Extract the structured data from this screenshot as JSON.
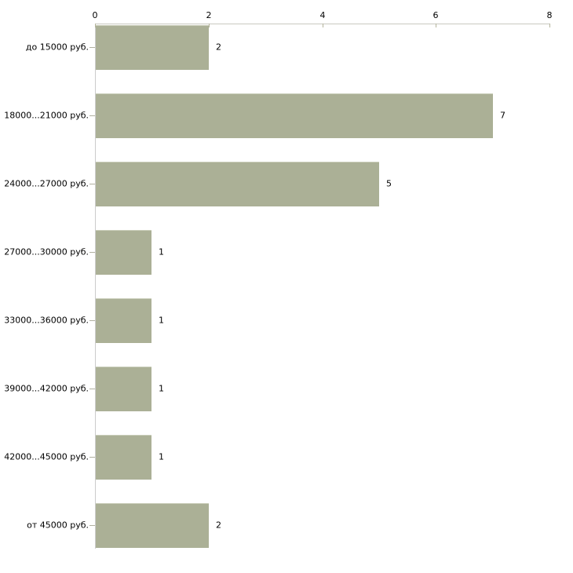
{
  "chart_data": {
    "type": "bar",
    "orientation": "horizontal",
    "title": "",
    "xlabel": "",
    "ylabel": "",
    "categories": [
      "до 15000 руб.",
      "18000...21000 руб.",
      "24000...27000 руб.",
      "27000...30000 руб.",
      "33000...36000 руб.",
      "39000...42000 руб.",
      "42000...45000 руб.",
      "от 45000 руб."
    ],
    "values": [
      2,
      7,
      5,
      1,
      1,
      1,
      1,
      2
    ],
    "value_labels": [
      "2",
      "7",
      "5",
      "1",
      "1",
      "1",
      "1",
      "2"
    ],
    "xticks": [
      0,
      2,
      4,
      6,
      8
    ],
    "xtick_labels": [
      "0",
      "2",
      "4",
      "6",
      "8"
    ],
    "xlim": [
      0,
      8
    ],
    "grid": false,
    "legend": null,
    "axis_position": "top",
    "bar_color": "#abb096",
    "bar_highlight_color": "#c9cdb9",
    "axis_line_color": "#c9c9c0",
    "tick_color": "#b4b49c",
    "text_color": "#000000",
    "background_color": "#ffffff"
  }
}
